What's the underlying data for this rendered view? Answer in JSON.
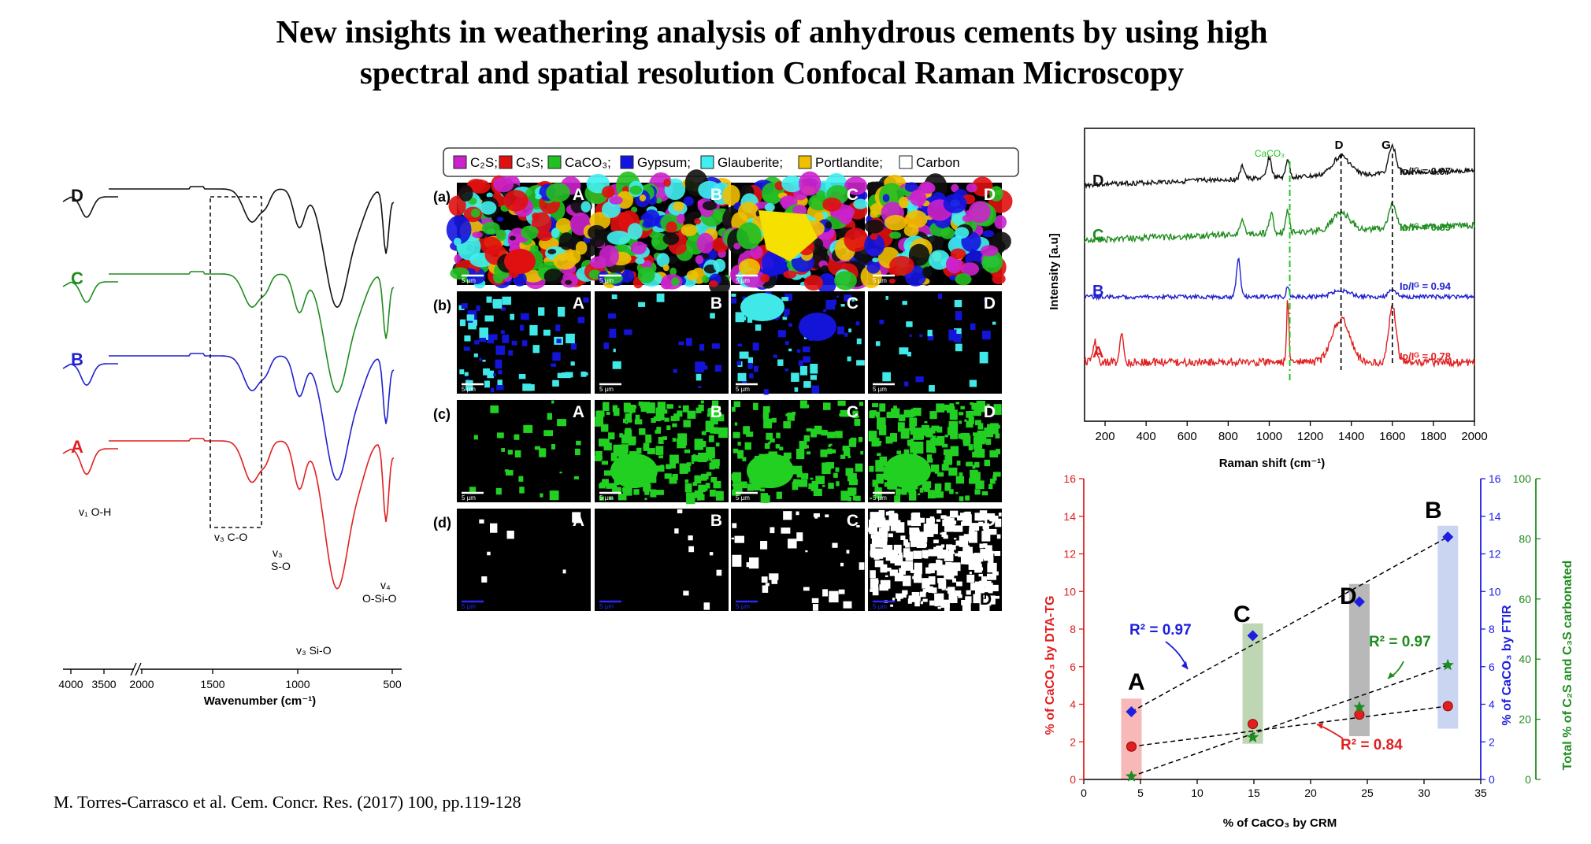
{
  "title": {
    "line1": "New insights in weathering analysis of anhydrous cements by using high",
    "line2": "spectral and spatial resolution Confocal Raman Microscopy"
  },
  "citation": "M. Torres-Carrasco et al. Cem. Concr. Res. (2017) 100, pp.119-128",
  "colors": {
    "A": "#e02020",
    "B": "#2020d0",
    "C": "#1e8c1e",
    "D": "#111111",
    "caco3_line": "#1ec81e"
  },
  "ftir": {
    "x_axis_label": "Wavenumber (cm⁻¹)",
    "tick_labels": [
      "4000",
      "3500",
      "2000",
      "1500",
      "1000",
      "500"
    ],
    "sample_labels": [
      "D",
      "C",
      "B",
      "A"
    ],
    "annotations": {
      "oh": "v₁ O-H",
      "co": "v₃ C-O",
      "so_1": "v₃",
      "so_2": "S-O",
      "sio": "v₃ Si-O",
      "osio_1": "v₄",
      "osio_2": "O-Si-O"
    }
  },
  "maps": {
    "legend": [
      {
        "label": "C₂S;",
        "color": "#cc22cc"
      },
      {
        "label": "C₃S;",
        "color": "#e01010"
      },
      {
        "label": "CaCO₃;",
        "color": "#22c022"
      },
      {
        "label": "Gypsum;",
        "color": "#1414e0"
      },
      {
        "label": "Glauberite;",
        "color": "#40f0f0"
      },
      {
        "label": "Portlandite;",
        "color": "#f0c000"
      },
      {
        "label": "Carbon",
        "color": "#ffffff"
      }
    ],
    "row_labels": [
      "(a)",
      "(b)",
      "(c)",
      "(d)"
    ],
    "col_labels": [
      "A",
      "B",
      "C",
      "D"
    ],
    "scale_bar_label": "5 µm",
    "extra_label_d": "D"
  },
  "raman": {
    "y_axis_label": "Intensity [a.u]",
    "x_axis_label": "Raman shift (cm⁻¹)",
    "tick_labels": [
      "200",
      "400",
      "600",
      "800",
      "1000",
      "1200",
      "1400",
      "1600",
      "1800",
      "2000"
    ],
    "peak_labels": {
      "caco3": "CaCO₃",
      "d": "D",
      "g": "G"
    },
    "sample_labels": [
      "D",
      "C",
      "B",
      "A"
    ],
    "ratios": [
      {
        "sample": "D",
        "text": "Iᴅ/Iᴳ = 0.97"
      },
      {
        "sample": "C",
        "text": "Iᴅ/Iᴳ = 0.89"
      },
      {
        "sample": "B",
        "text": "Iᴅ/Iᴳ = 0.94"
      },
      {
        "sample": "A",
        "text": "Iᴅ/Iᴳ = 0.78"
      }
    ]
  },
  "correlation": {
    "x_axis_label": "% of CaCO₃ by CRM",
    "y_left_label": "% of CaCO₃ by DTA-TG",
    "y_right1_label": "% of CaCO₃ by FTIR",
    "y_right2_label": "Total % of C₂S and C₃S carbonated",
    "x_ticks": [
      "0",
      "5",
      "10",
      "15",
      "20",
      "25",
      "30",
      "35"
    ],
    "y_left_ticks": [
      "0",
      "2",
      "4",
      "6",
      "8",
      "10",
      "12",
      "14",
      "16"
    ],
    "y_right1_ticks": [
      "0",
      "2",
      "4",
      "6",
      "8",
      "10",
      "12",
      "14",
      "16"
    ],
    "y_right2_ticks": [
      "0",
      "20",
      "40",
      "60",
      "80",
      "100"
    ],
    "sample_labels": [
      "A",
      "C",
      "D",
      "B"
    ],
    "r2": {
      "ftir": "R² = 0.97",
      "carbonated": "R² = 0.97",
      "dta": "R² = 0.84"
    }
  },
  "chart_data": [
    {
      "type": "scatter",
      "title": "",
      "xlabel": "% of CaCO₃ by CRM",
      "ylabel": "% of CaCO₃ by DTA-TG",
      "xlim": [
        0,
        35
      ],
      "ylim": [
        0,
        16
      ],
      "categories": [
        "A",
        "C",
        "D",
        "B"
      ],
      "series": [
        {
          "name": "% of CaCO₃ by DTA-TG",
          "axis": "left",
          "marker": "circle",
          "color": "#e02020",
          "x": [
            4.2,
            14.9,
            24.3,
            32.1
          ],
          "values": [
            1.75,
            2.95,
            3.45,
            3.9
          ]
        },
        {
          "name": "% of CaCO₃ by FTIR",
          "axis": "right1",
          "marker": "diamond",
          "color": "#1e1ee0",
          "x": [
            4.2,
            14.9,
            24.3,
            32.1
          ],
          "values": [
            3.6,
            7.65,
            9.45,
            12.9
          ]
        },
        {
          "name": "Total % of C₂S and C₃S carbonated",
          "axis": "right2",
          "marker": "star",
          "color": "#1e8c1e",
          "x": [
            4.2,
            14.9,
            24.3,
            32.1
          ],
          "values": [
            1,
            14,
            24,
            38
          ]
        }
      ],
      "y_right1_lim": [
        0,
        16
      ],
      "y_right2_lim": [
        0,
        100
      ]
    }
  ]
}
